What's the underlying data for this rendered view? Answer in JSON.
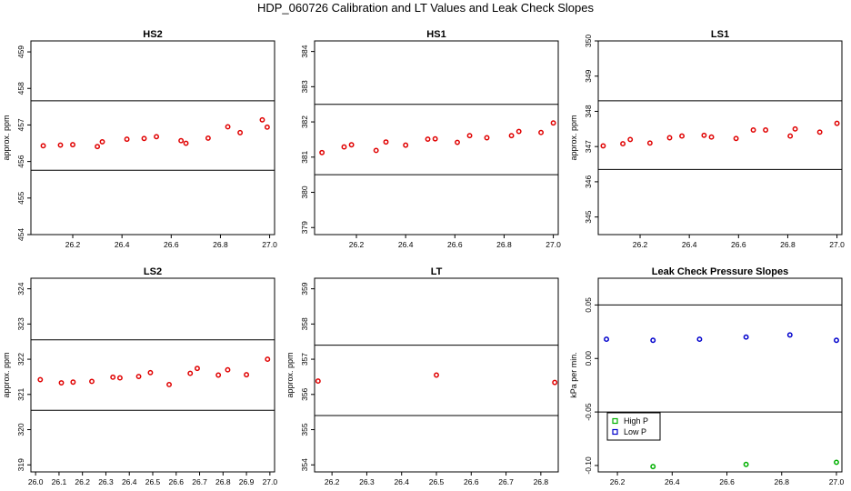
{
  "title": "HDP_060726  Calibration and LT Values and Leak Check Slopes",
  "colors": {
    "point": "#e00000",
    "high_p": "#00b000",
    "low_p": "#0000cc",
    "line": "#000000"
  },
  "chart_data": [
    {
      "type": "scatter",
      "title": "HS2",
      "ylabel": "approx. ppm",
      "xlim": [
        26.03,
        27.02
      ],
      "ylim": [
        454,
        459.3
      ],
      "xticks": [
        "26.2",
        "26.4",
        "26.6",
        "26.8",
        "27.0"
      ],
      "yticks": [
        "454",
        "455",
        "456",
        "457",
        "458",
        "459"
      ],
      "hlines": [
        457.66,
        455.76
      ],
      "x": [
        26.08,
        26.15,
        26.2,
        26.3,
        26.32,
        26.42,
        26.49,
        26.54,
        26.64,
        26.66,
        26.75,
        26.83,
        26.88,
        26.97,
        26.99
      ],
      "y": [
        456.43,
        456.45,
        456.46,
        456.41,
        456.54,
        456.61,
        456.63,
        456.68,
        456.57,
        456.5,
        456.64,
        456.95,
        456.79,
        457.14,
        456.94
      ]
    },
    {
      "type": "scatter",
      "title": "HS1",
      "ylabel": "",
      "xlim": [
        26.03,
        27.02
      ],
      "ylim": [
        378.8,
        384.3
      ],
      "xticks": [
        "26.2",
        "26.4",
        "26.6",
        "26.8",
        "27.0"
      ],
      "yticks": [
        "379",
        "380",
        "381",
        "382",
        "383",
        "384"
      ],
      "hlines": [
        382.5,
        380.5
      ],
      "x": [
        26.06,
        26.15,
        26.18,
        26.28,
        26.32,
        26.4,
        26.49,
        26.52,
        26.61,
        26.66,
        26.73,
        26.83,
        26.86,
        26.95,
        27.0
      ],
      "y": [
        381.13,
        381.29,
        381.35,
        381.19,
        381.43,
        381.34,
        381.51,
        381.52,
        381.42,
        381.61,
        381.55,
        381.61,
        381.73,
        381.7,
        381.97
      ]
    },
    {
      "type": "scatter",
      "title": "LS1",
      "ylabel": "approx. ppm",
      "xlim": [
        26.03,
        27.02
      ],
      "ylim": [
        344.5,
        350
      ],
      "xticks": [
        "26.2",
        "26.4",
        "26.6",
        "26.8",
        "27.0"
      ],
      "yticks": [
        "345",
        "346",
        "347",
        "348",
        "349",
        "350"
      ],
      "hlines": [
        348.3,
        346.35
      ],
      "x": [
        26.05,
        26.13,
        26.16,
        26.24,
        26.32,
        26.37,
        26.46,
        26.49,
        26.59,
        26.66,
        26.71,
        26.81,
        26.83,
        26.93,
        27.0
      ],
      "y": [
        347.02,
        347.08,
        347.2,
        347.1,
        347.25,
        347.3,
        347.32,
        347.27,
        347.23,
        347.47,
        347.47,
        347.3,
        347.5,
        347.41,
        347.66
      ]
    },
    {
      "type": "scatter",
      "title": "LS2",
      "ylabel": "approx. ppm",
      "xlim": [
        25.98,
        27.02
      ],
      "ylim": [
        318.8,
        324.3
      ],
      "xticks": [
        "26.0",
        "26.1",
        "26.2",
        "26.3",
        "26.4",
        "26.5",
        "26.6",
        "26.7",
        "26.8",
        "26.9",
        "27.0"
      ],
      "yticks": [
        "319",
        "320",
        "321",
        "322",
        "323",
        "324"
      ],
      "hlines": [
        322.55,
        320.55
      ],
      "x": [
        26.02,
        26.11,
        26.16,
        26.24,
        26.33,
        26.36,
        26.44,
        26.49,
        26.57,
        26.66,
        26.69,
        26.78,
        26.82,
        26.9,
        26.99
      ],
      "y": [
        321.42,
        321.33,
        321.35,
        321.37,
        321.49,
        321.47,
        321.51,
        321.62,
        321.28,
        321.6,
        321.74,
        321.55,
        321.7,
        321.56,
        322.0
      ]
    },
    {
      "type": "scatter",
      "title": "LT",
      "ylabel": "approx. ppm",
      "xlim": [
        26.15,
        26.85
      ],
      "ylim": [
        353.8,
        359.3
      ],
      "xticks": [
        "26.2",
        "26.3",
        "26.4",
        "26.5",
        "26.6",
        "26.7",
        "26.8"
      ],
      "yticks": [
        "354",
        "355",
        "356",
        "357",
        "358",
        "359"
      ],
      "hlines": [
        357.4,
        355.4
      ],
      "x": [
        26.16,
        26.5,
        26.84
      ],
      "y": [
        356.38,
        356.55,
        356.34
      ]
    },
    {
      "type": "scatter",
      "title": "Leak Check Pressure Slopes",
      "ylabel": "kPa per min.",
      "xlim": [
        26.13,
        27.02
      ],
      "ylim": [
        -0.106,
        0.075
      ],
      "xticks": [
        "26.2",
        "26.4",
        "26.6",
        "26.8",
        "27.0"
      ],
      "yticks": [
        "-0.10",
        "-0.05",
        "0.00",
        "0.05"
      ],
      "hlines": [
        0.05,
        -0.05
      ],
      "legend": {
        "placement": "bottom-left",
        "entries": [
          "High P",
          "Low P"
        ]
      },
      "series": [
        {
          "name": "High P",
          "x": [
            26.33,
            26.67,
            27.0
          ],
          "y": [
            -0.101,
            -0.099,
            -0.097
          ]
        },
        {
          "name": "Low P",
          "x": [
            26.16,
            26.33,
            26.5,
            26.67,
            26.83,
            27.0
          ],
          "y": [
            0.018,
            0.017,
            0.018,
            0.02,
            0.022,
            0.017
          ]
        }
      ]
    }
  ]
}
